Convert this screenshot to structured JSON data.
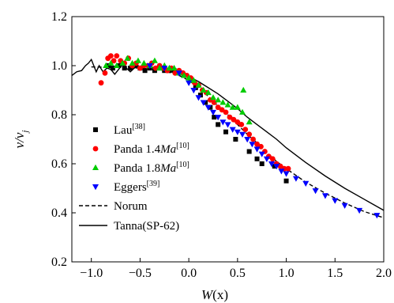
{
  "chart_data": {
    "type": "scatter",
    "xlabel_main": "W",
    "xlabel_arg": "(x)",
    "ylabel_main": "v/v",
    "ylabel_sub": "j",
    "xlim": [
      -1.2,
      2.0
    ],
    "ylim": [
      0.2,
      1.2
    ],
    "x_ticks": [
      -1.0,
      -0.5,
      0.0,
      0.5,
      1.0,
      1.5,
      2.0
    ],
    "x_tick_labels": [
      "−1.0",
      "−0.5",
      "0.0",
      "0.5",
      "1.0",
      "1.5",
      "2.0"
    ],
    "y_ticks": [
      0.2,
      0.4,
      0.6,
      0.8,
      1.0,
      1.2
    ],
    "y_tick_labels": [
      "0.2",
      "0.4",
      "0.6",
      "0.8",
      "1.0",
      "1.2"
    ],
    "grid": false,
    "legend_position": "lower-left",
    "series": [
      {
        "name": "Lau",
        "ref": "[38]",
        "marker": "square",
        "color": "#000000",
        "points": [
          [
            -0.82,
            1.0
          ],
          [
            -0.78,
            0.99
          ],
          [
            -0.72,
            1.0
          ],
          [
            -0.66,
            0.99
          ],
          [
            -0.6,
            0.99
          ],
          [
            -0.55,
            1.0
          ],
          [
            -0.5,
            0.99
          ],
          [
            -0.45,
            0.98
          ],
          [
            -0.4,
            0.99
          ],
          [
            -0.35,
            0.98
          ],
          [
            -0.3,
            0.99
          ],
          [
            -0.25,
            0.98
          ],
          [
            -0.2,
            0.98
          ],
          [
            -0.15,
            0.98
          ],
          [
            -0.1,
            0.97
          ],
          [
            -0.05,
            0.96
          ],
          [
            0.02,
            0.94
          ],
          [
            0.07,
            0.91
          ],
          [
            0.12,
            0.88
          ],
          [
            0.17,
            0.85
          ],
          [
            0.22,
            0.83
          ],
          [
            0.26,
            0.79
          ],
          [
            0.3,
            0.76
          ],
          [
            0.38,
            0.73
          ],
          [
            0.48,
            0.7
          ],
          [
            0.62,
            0.65
          ],
          [
            0.7,
            0.62
          ],
          [
            0.75,
            0.6
          ],
          [
            0.88,
            0.59
          ],
          [
            1.0,
            0.53
          ]
        ]
      },
      {
        "name": "Panda 1.4",
        "name_unit": "Ma",
        "ref": "[10]",
        "marker": "circle",
        "color": "#ff0000",
        "points": [
          [
            -0.9,
            0.93
          ],
          [
            -0.86,
            0.97
          ],
          [
            -0.83,
            1.03
          ],
          [
            -0.8,
            1.04
          ],
          [
            -0.77,
            1.02
          ],
          [
            -0.74,
            1.04
          ],
          [
            -0.7,
            1.02
          ],
          [
            -0.66,
            1.01
          ],
          [
            -0.62,
            1.03
          ],
          [
            -0.58,
            1.0
          ],
          [
            -0.54,
            1.01
          ],
          [
            -0.5,
            0.99
          ],
          [
            -0.46,
            1.0
          ],
          [
            -0.42,
            1.0
          ],
          [
            -0.38,
            1.01
          ],
          [
            -0.34,
            0.99
          ],
          [
            -0.3,
            1.0
          ],
          [
            -0.26,
            0.99
          ],
          [
            -0.22,
            0.98
          ],
          [
            -0.18,
            0.99
          ],
          [
            -0.14,
            0.97
          ],
          [
            -0.1,
            0.98
          ],
          [
            -0.06,
            0.97
          ],
          [
            -0.02,
            0.96
          ],
          [
            0.02,
            0.95
          ],
          [
            0.06,
            0.93
          ],
          [
            0.1,
            0.92
          ],
          [
            0.14,
            0.9
          ],
          [
            0.18,
            0.89
          ],
          [
            0.22,
            0.86
          ],
          [
            0.26,
            0.85
          ],
          [
            0.3,
            0.83
          ],
          [
            0.34,
            0.82
          ],
          [
            0.38,
            0.81
          ],
          [
            0.42,
            0.79
          ],
          [
            0.46,
            0.78
          ],
          [
            0.5,
            0.77
          ],
          [
            0.54,
            0.76
          ],
          [
            0.58,
            0.74
          ],
          [
            0.62,
            0.72
          ],
          [
            0.66,
            0.7
          ],
          [
            0.7,
            0.68
          ],
          [
            0.74,
            0.67
          ],
          [
            0.78,
            0.65
          ],
          [
            0.82,
            0.63
          ],
          [
            0.86,
            0.62
          ],
          [
            0.9,
            0.6
          ],
          [
            0.94,
            0.59
          ],
          [
            0.98,
            0.58
          ],
          [
            1.02,
            0.58
          ]
        ]
      },
      {
        "name": "Panda 1.8",
        "name_unit": "Ma",
        "ref": "[10]",
        "marker": "triangle-up",
        "color": "#00cc00",
        "points": [
          [
            -0.85,
            1.0
          ],
          [
            -0.8,
            1.01
          ],
          [
            -0.74,
            1.0
          ],
          [
            -0.68,
            1.01
          ],
          [
            -0.63,
            1.03
          ],
          [
            -0.58,
            1.01
          ],
          [
            -0.52,
            1.02
          ],
          [
            -0.46,
            1.01
          ],
          [
            -0.4,
            1.0
          ],
          [
            -0.35,
            1.02
          ],
          [
            -0.3,
            0.99
          ],
          [
            -0.25,
            1.0
          ],
          [
            -0.2,
            0.99
          ],
          [
            -0.15,
            0.99
          ],
          [
            -0.1,
            0.97
          ],
          [
            -0.05,
            0.96
          ],
          [
            0.0,
            0.95
          ],
          [
            0.05,
            0.94
          ],
          [
            0.1,
            0.92
          ],
          [
            0.15,
            0.9
          ],
          [
            0.2,
            0.89
          ],
          [
            0.25,
            0.87
          ],
          [
            0.3,
            0.86
          ],
          [
            0.35,
            0.85
          ],
          [
            0.4,
            0.84
          ],
          [
            0.45,
            0.83
          ],
          [
            0.5,
            0.83
          ],
          [
            0.55,
            0.81
          ],
          [
            0.56,
            0.9
          ],
          [
            0.62,
            0.77
          ]
        ]
      },
      {
        "name": "Eggers",
        "ref": "[39]",
        "marker": "triangle-down",
        "color": "#0000ff",
        "points": [
          [
            -0.4,
            1.0
          ],
          [
            -0.25,
            0.99
          ],
          [
            -0.1,
            0.97
          ],
          [
            0.0,
            0.93
          ],
          [
            0.05,
            0.9
          ],
          [
            0.1,
            0.87
          ],
          [
            0.15,
            0.85
          ],
          [
            0.2,
            0.83
          ],
          [
            0.25,
            0.81
          ],
          [
            0.3,
            0.79
          ],
          [
            0.35,
            0.77
          ],
          [
            0.4,
            0.76
          ],
          [
            0.45,
            0.74
          ],
          [
            0.5,
            0.73
          ],
          [
            0.55,
            0.72
          ],
          [
            0.6,
            0.7
          ],
          [
            0.65,
            0.68
          ],
          [
            0.7,
            0.66
          ],
          [
            0.75,
            0.64
          ],
          [
            0.8,
            0.62
          ],
          [
            0.85,
            0.6
          ],
          [
            0.9,
            0.59
          ],
          [
            0.95,
            0.57
          ],
          [
            1.0,
            0.56
          ],
          [
            1.1,
            0.54
          ],
          [
            1.2,
            0.52
          ],
          [
            1.3,
            0.49
          ],
          [
            1.4,
            0.47
          ],
          [
            1.5,
            0.45
          ],
          [
            1.6,
            0.43
          ],
          [
            1.75,
            0.41
          ],
          [
            1.93,
            0.39
          ]
        ]
      },
      {
        "name": "Norum",
        "marker": "dashed-line",
        "color": "#000000",
        "points": [
          [
            -1.0,
            0.995
          ],
          [
            -0.5,
            0.99
          ],
          [
            -0.3,
            0.985
          ],
          [
            -0.1,
            0.96
          ],
          [
            0.0,
            0.94
          ],
          [
            0.1,
            0.91
          ],
          [
            0.2,
            0.875
          ],
          [
            0.3,
            0.835
          ],
          [
            0.4,
            0.8
          ],
          [
            0.5,
            0.76
          ],
          [
            0.6,
            0.72
          ],
          [
            0.7,
            0.685
          ],
          [
            0.8,
            0.645
          ],
          [
            0.9,
            0.61
          ],
          [
            1.0,
            0.58
          ],
          [
            1.2,
            0.525
          ],
          [
            1.4,
            0.48
          ],
          [
            1.6,
            0.44
          ],
          [
            1.8,
            0.405
          ],
          [
            2.0,
            0.38
          ]
        ]
      },
      {
        "name": "Tanna(SP-62)",
        "marker": "solid-line",
        "color": "#000000",
        "points": [
          [
            -1.2,
            0.96
          ],
          [
            -1.15,
            0.975
          ],
          [
            -1.1,
            0.98
          ],
          [
            -1.06,
            1.0
          ],
          [
            -1.03,
            1.01
          ],
          [
            -1.0,
            1.025
          ],
          [
            -0.98,
            1.005
          ],
          [
            -0.95,
            0.975
          ],
          [
            -0.92,
            1.0
          ],
          [
            -0.88,
            0.975
          ],
          [
            -0.84,
            0.99
          ],
          [
            -0.8,
            0.985
          ],
          [
            -0.76,
            0.965
          ],
          [
            -0.72,
            0.985
          ],
          [
            -0.68,
            1.005
          ],
          [
            -0.64,
            0.99
          ],
          [
            -0.6,
            0.975
          ],
          [
            -0.56,
            0.99
          ],
          [
            -0.52,
            1.0
          ],
          [
            -0.48,
            0.99
          ],
          [
            -0.44,
            0.985
          ],
          [
            -0.4,
            0.99
          ],
          [
            -0.35,
            0.995
          ],
          [
            -0.3,
            0.99
          ],
          [
            -0.25,
            0.985
          ],
          [
            -0.2,
            0.98
          ],
          [
            -0.1,
            0.97
          ],
          [
            0.0,
            0.955
          ],
          [
            0.1,
            0.935
          ],
          [
            0.2,
            0.91
          ],
          [
            0.3,
            0.885
          ],
          [
            0.4,
            0.855
          ],
          [
            0.5,
            0.825
          ],
          [
            0.6,
            0.79
          ],
          [
            0.7,
            0.76
          ],
          [
            0.8,
            0.73
          ],
          [
            0.9,
            0.7
          ],
          [
            1.0,
            0.665
          ],
          [
            1.2,
            0.605
          ],
          [
            1.4,
            0.55
          ],
          [
            1.6,
            0.5
          ],
          [
            1.8,
            0.455
          ],
          [
            2.0,
            0.41
          ]
        ]
      }
    ]
  }
}
